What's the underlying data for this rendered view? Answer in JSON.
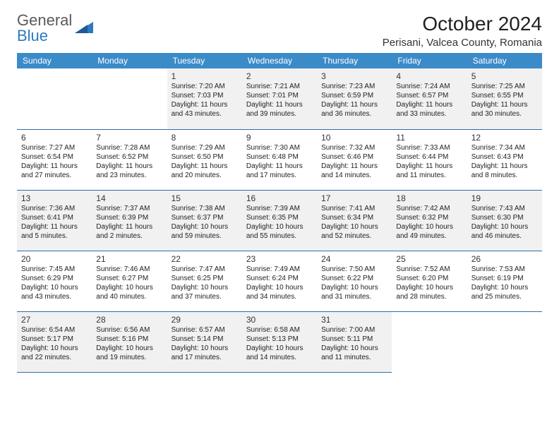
{
  "logo": {
    "line1": "General",
    "line2": "Blue"
  },
  "title": "October 2024",
  "location": "Perisani, Valcea County, Romania",
  "colors": {
    "header_bg": "#3b8bc9",
    "header_text": "#ffffff",
    "row_border": "#2e6ea8",
    "alt_row_bg": "#f1f1f1",
    "logo_gray": "#5a5a5a",
    "logo_blue": "#2b7ac0"
  },
  "weekdays": [
    "Sunday",
    "Monday",
    "Tuesday",
    "Wednesday",
    "Thursday",
    "Friday",
    "Saturday"
  ],
  "weeks": [
    [
      null,
      null,
      {
        "n": "1",
        "sr": "Sunrise: 7:20 AM",
        "ss": "Sunset: 7:03 PM",
        "dl1": "Daylight: 11 hours",
        "dl2": "and 43 minutes."
      },
      {
        "n": "2",
        "sr": "Sunrise: 7:21 AM",
        "ss": "Sunset: 7:01 PM",
        "dl1": "Daylight: 11 hours",
        "dl2": "and 39 minutes."
      },
      {
        "n": "3",
        "sr": "Sunrise: 7:23 AM",
        "ss": "Sunset: 6:59 PM",
        "dl1": "Daylight: 11 hours",
        "dl2": "and 36 minutes."
      },
      {
        "n": "4",
        "sr": "Sunrise: 7:24 AM",
        "ss": "Sunset: 6:57 PM",
        "dl1": "Daylight: 11 hours",
        "dl2": "and 33 minutes."
      },
      {
        "n": "5",
        "sr": "Sunrise: 7:25 AM",
        "ss": "Sunset: 6:55 PM",
        "dl1": "Daylight: 11 hours",
        "dl2": "and 30 minutes."
      }
    ],
    [
      {
        "n": "6",
        "sr": "Sunrise: 7:27 AM",
        "ss": "Sunset: 6:54 PM",
        "dl1": "Daylight: 11 hours",
        "dl2": "and 27 minutes."
      },
      {
        "n": "7",
        "sr": "Sunrise: 7:28 AM",
        "ss": "Sunset: 6:52 PM",
        "dl1": "Daylight: 11 hours",
        "dl2": "and 23 minutes."
      },
      {
        "n": "8",
        "sr": "Sunrise: 7:29 AM",
        "ss": "Sunset: 6:50 PM",
        "dl1": "Daylight: 11 hours",
        "dl2": "and 20 minutes."
      },
      {
        "n": "9",
        "sr": "Sunrise: 7:30 AM",
        "ss": "Sunset: 6:48 PM",
        "dl1": "Daylight: 11 hours",
        "dl2": "and 17 minutes."
      },
      {
        "n": "10",
        "sr": "Sunrise: 7:32 AM",
        "ss": "Sunset: 6:46 PM",
        "dl1": "Daylight: 11 hours",
        "dl2": "and 14 minutes."
      },
      {
        "n": "11",
        "sr": "Sunrise: 7:33 AM",
        "ss": "Sunset: 6:44 PM",
        "dl1": "Daylight: 11 hours",
        "dl2": "and 11 minutes."
      },
      {
        "n": "12",
        "sr": "Sunrise: 7:34 AM",
        "ss": "Sunset: 6:43 PM",
        "dl1": "Daylight: 11 hours",
        "dl2": "and 8 minutes."
      }
    ],
    [
      {
        "n": "13",
        "sr": "Sunrise: 7:36 AM",
        "ss": "Sunset: 6:41 PM",
        "dl1": "Daylight: 11 hours",
        "dl2": "and 5 minutes."
      },
      {
        "n": "14",
        "sr": "Sunrise: 7:37 AM",
        "ss": "Sunset: 6:39 PM",
        "dl1": "Daylight: 11 hours",
        "dl2": "and 2 minutes."
      },
      {
        "n": "15",
        "sr": "Sunrise: 7:38 AM",
        "ss": "Sunset: 6:37 PM",
        "dl1": "Daylight: 10 hours",
        "dl2": "and 59 minutes."
      },
      {
        "n": "16",
        "sr": "Sunrise: 7:39 AM",
        "ss": "Sunset: 6:35 PM",
        "dl1": "Daylight: 10 hours",
        "dl2": "and 55 minutes."
      },
      {
        "n": "17",
        "sr": "Sunrise: 7:41 AM",
        "ss": "Sunset: 6:34 PM",
        "dl1": "Daylight: 10 hours",
        "dl2": "and 52 minutes."
      },
      {
        "n": "18",
        "sr": "Sunrise: 7:42 AM",
        "ss": "Sunset: 6:32 PM",
        "dl1": "Daylight: 10 hours",
        "dl2": "and 49 minutes."
      },
      {
        "n": "19",
        "sr": "Sunrise: 7:43 AM",
        "ss": "Sunset: 6:30 PM",
        "dl1": "Daylight: 10 hours",
        "dl2": "and 46 minutes."
      }
    ],
    [
      {
        "n": "20",
        "sr": "Sunrise: 7:45 AM",
        "ss": "Sunset: 6:29 PM",
        "dl1": "Daylight: 10 hours",
        "dl2": "and 43 minutes."
      },
      {
        "n": "21",
        "sr": "Sunrise: 7:46 AM",
        "ss": "Sunset: 6:27 PM",
        "dl1": "Daylight: 10 hours",
        "dl2": "and 40 minutes."
      },
      {
        "n": "22",
        "sr": "Sunrise: 7:47 AM",
        "ss": "Sunset: 6:25 PM",
        "dl1": "Daylight: 10 hours",
        "dl2": "and 37 minutes."
      },
      {
        "n": "23",
        "sr": "Sunrise: 7:49 AM",
        "ss": "Sunset: 6:24 PM",
        "dl1": "Daylight: 10 hours",
        "dl2": "and 34 minutes."
      },
      {
        "n": "24",
        "sr": "Sunrise: 7:50 AM",
        "ss": "Sunset: 6:22 PM",
        "dl1": "Daylight: 10 hours",
        "dl2": "and 31 minutes."
      },
      {
        "n": "25",
        "sr": "Sunrise: 7:52 AM",
        "ss": "Sunset: 6:20 PM",
        "dl1": "Daylight: 10 hours",
        "dl2": "and 28 minutes."
      },
      {
        "n": "26",
        "sr": "Sunrise: 7:53 AM",
        "ss": "Sunset: 6:19 PM",
        "dl1": "Daylight: 10 hours",
        "dl2": "and 25 minutes."
      }
    ],
    [
      {
        "n": "27",
        "sr": "Sunrise: 6:54 AM",
        "ss": "Sunset: 5:17 PM",
        "dl1": "Daylight: 10 hours",
        "dl2": "and 22 minutes."
      },
      {
        "n": "28",
        "sr": "Sunrise: 6:56 AM",
        "ss": "Sunset: 5:16 PM",
        "dl1": "Daylight: 10 hours",
        "dl2": "and 19 minutes."
      },
      {
        "n": "29",
        "sr": "Sunrise: 6:57 AM",
        "ss": "Sunset: 5:14 PM",
        "dl1": "Daylight: 10 hours",
        "dl2": "and 17 minutes."
      },
      {
        "n": "30",
        "sr": "Sunrise: 6:58 AM",
        "ss": "Sunset: 5:13 PM",
        "dl1": "Daylight: 10 hours",
        "dl2": "and 14 minutes."
      },
      {
        "n": "31",
        "sr": "Sunrise: 7:00 AM",
        "ss": "Sunset: 5:11 PM",
        "dl1": "Daylight: 10 hours",
        "dl2": "and 11 minutes."
      },
      null,
      null
    ]
  ]
}
